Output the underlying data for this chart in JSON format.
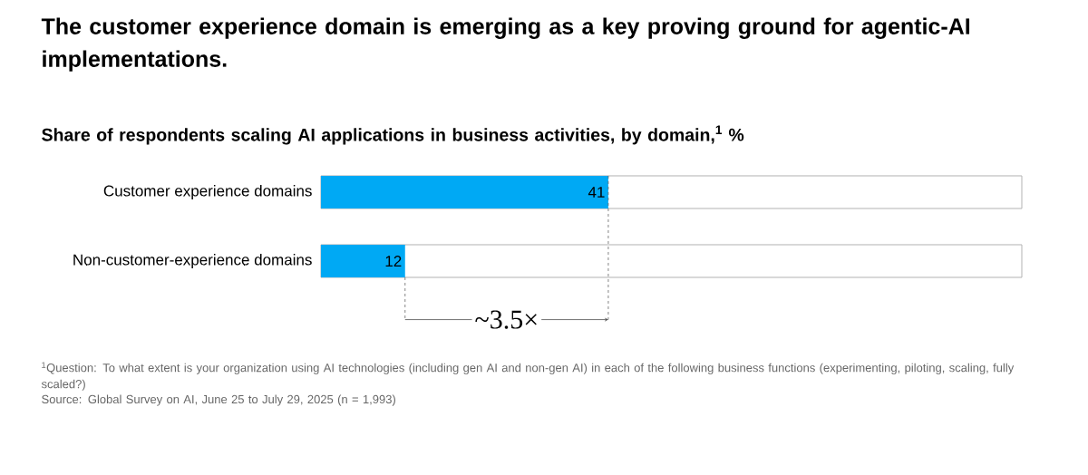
{
  "chart_data": {
    "type": "bar",
    "orientation": "horizontal",
    "title": "The customer experience domain is emerging as a key proving ground for agentic-AI implementations.",
    "subtitle": "Share of respondents scaling AI applications in business activities, by domain,$^{1}$ %",
    "categories": [
      "Customer experience domains",
      "Non-customer-experience domains"
    ],
    "values": [
      41,
      12
    ],
    "color": "#00a9f4",
    "ref_lines": [
      {
        "axis": "x",
        "value": 41,
        "line_style": "dashed",
        "color": "#666666"
      }
    ],
    "xlim": [
      0,
      100
    ],
    "data_labels": true,
    "tick_labels": "y",
    "annotations": [
      "~3.5×",
      "$^{1}$Question: To what extent is your organization using AI technologies (including gen AI and non-gen AI) in each of the following business functions (experimenting, piloting, scaling, fully scaled?)",
      "Source: Global Survey on AI, June 25 to July 29, 2025 (n = 1,993)"
    ]
  }
}
